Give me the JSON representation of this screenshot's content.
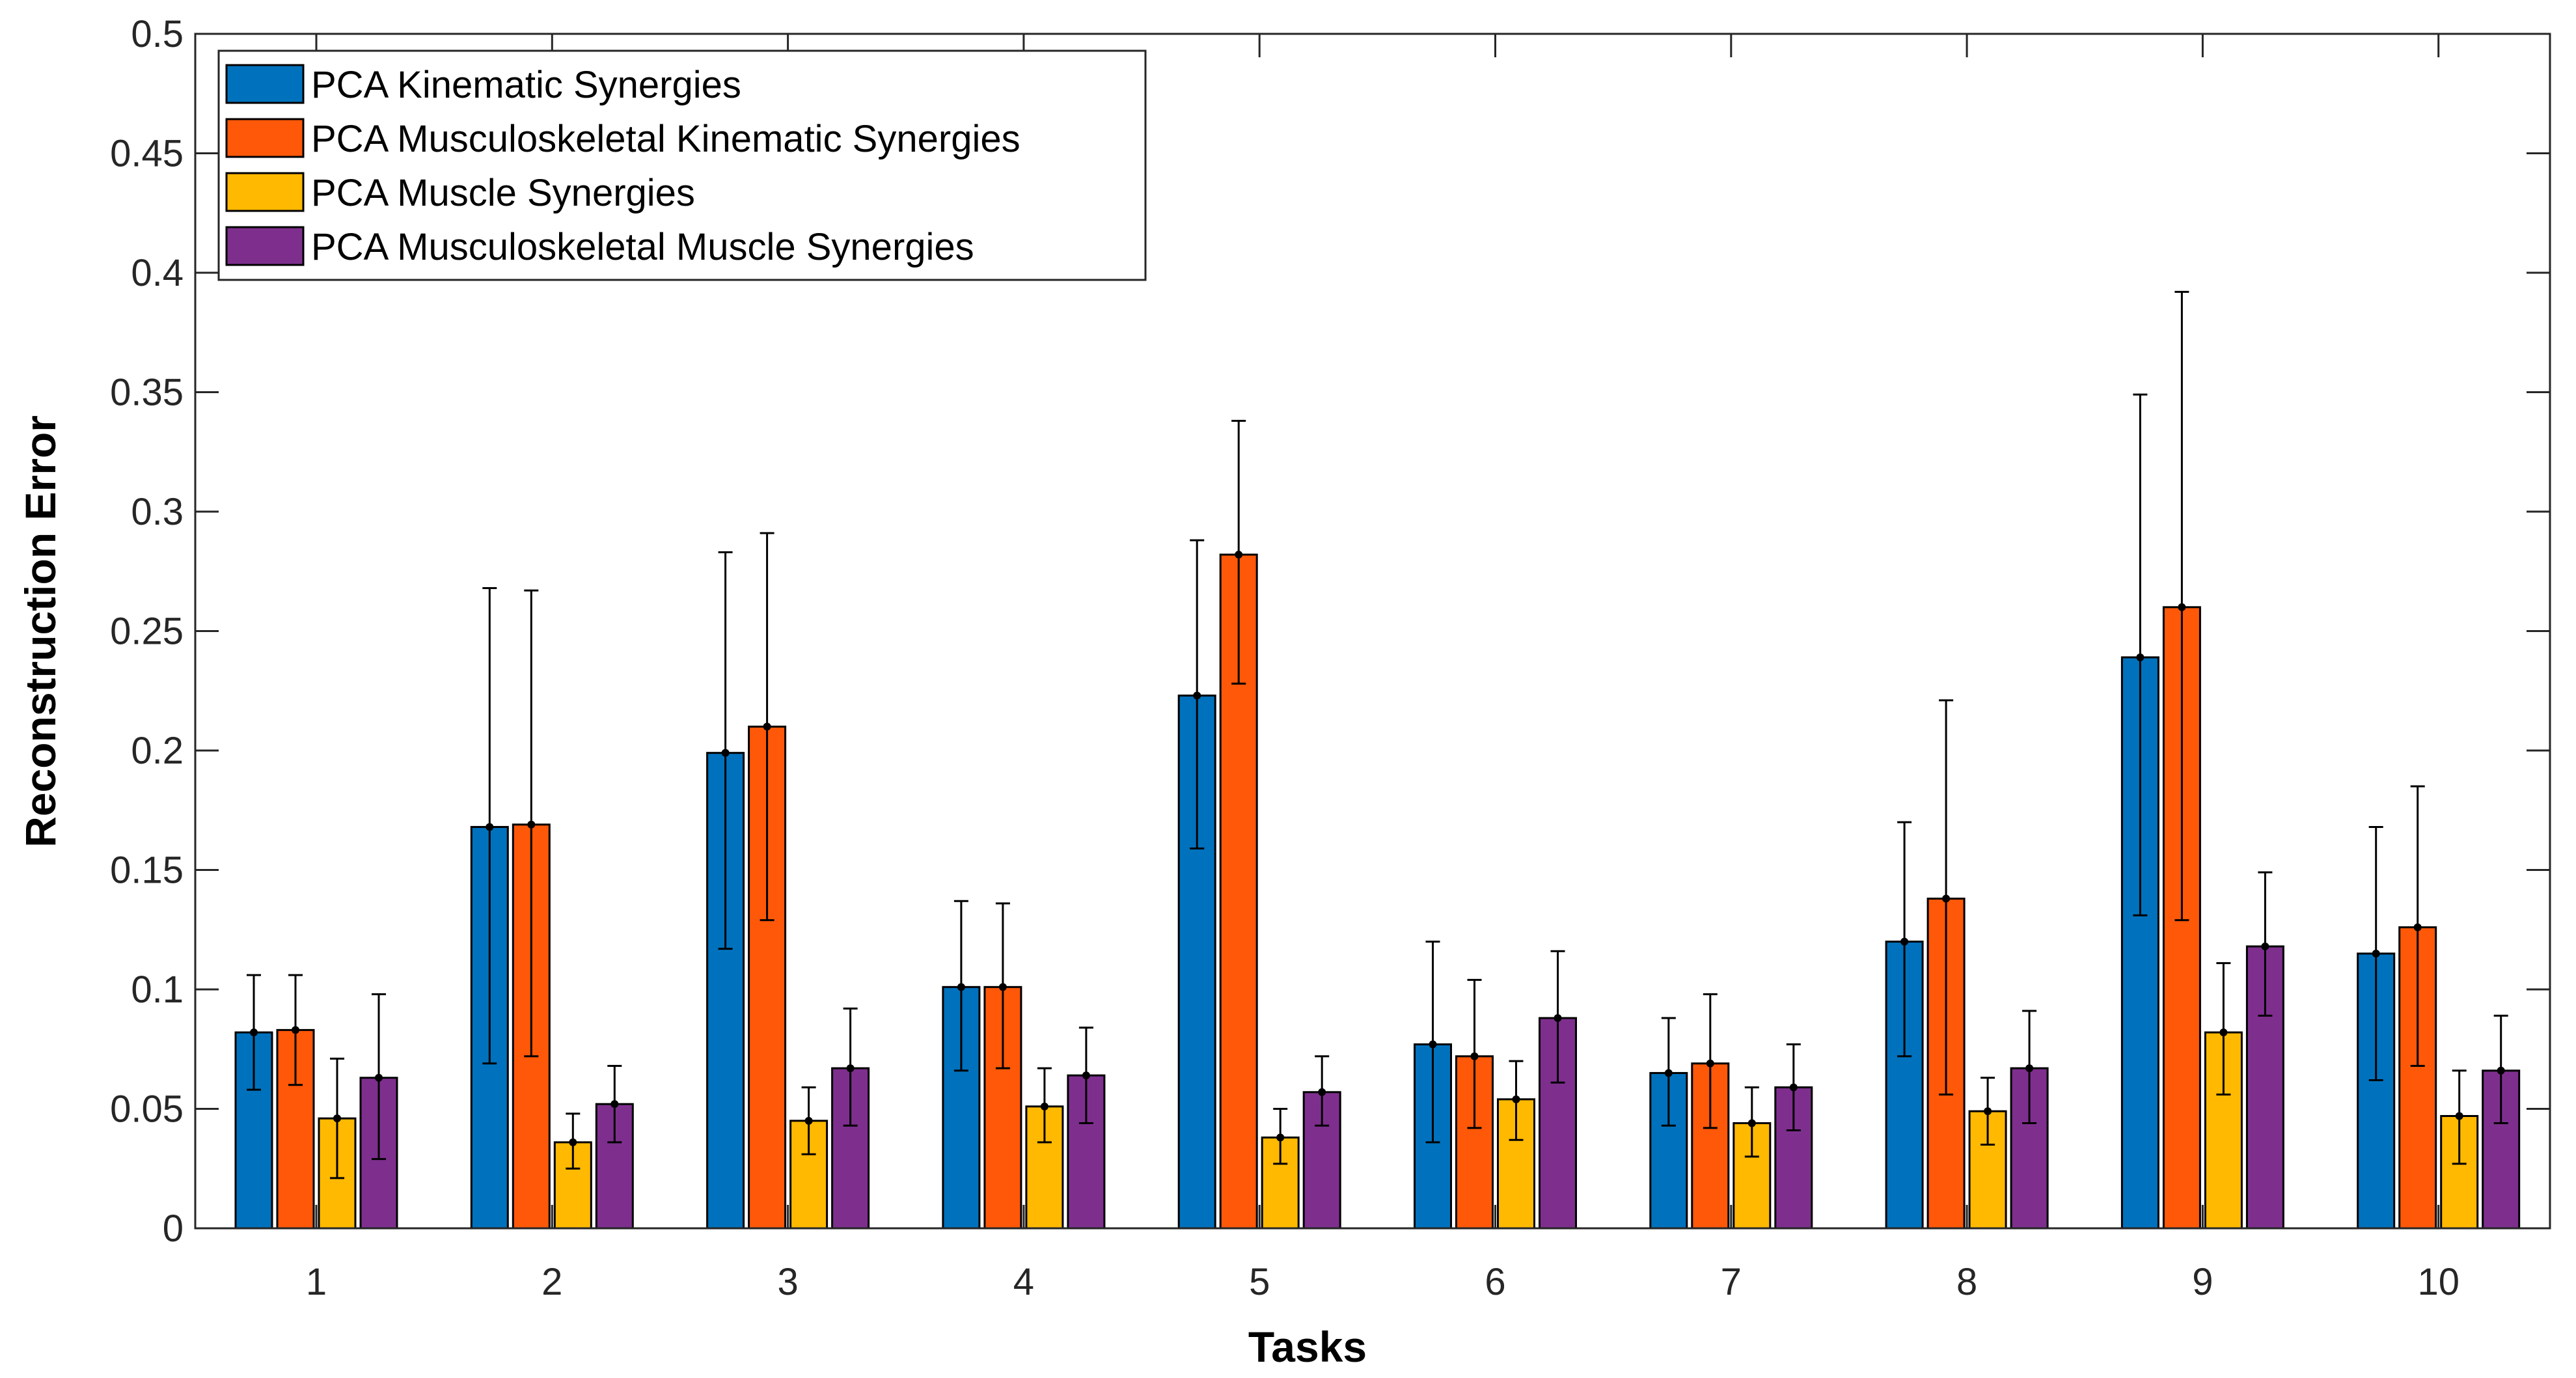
{
  "chart_data": {
    "type": "bar",
    "title": "",
    "xlabel": "Tasks",
    "ylabel": "Reconstruction Error",
    "ylim": [
      0,
      0.5
    ],
    "yticks": [
      0,
      0.05,
      0.1,
      0.15,
      0.2,
      0.25,
      0.3,
      0.35,
      0.4,
      0.45,
      0.5
    ],
    "ytick_labels": [
      "0",
      "0.05",
      "0.1",
      "0.15",
      "0.2",
      "0.25",
      "0.3",
      "0.35",
      "0.4",
      "0.45",
      "0.5"
    ],
    "categories": [
      "1",
      "2",
      "3",
      "4",
      "5",
      "6",
      "7",
      "8",
      "9",
      "10"
    ],
    "grid": false,
    "legend_position": "top-left",
    "series": [
      {
        "name": "PCA Kinematic Synergies",
        "color": "#0072BD",
        "values": [
          0.082,
          0.168,
          0.199,
          0.101,
          0.223,
          0.077,
          0.065,
          0.12,
          0.239,
          0.115
        ],
        "err_low": [
          0.058,
          0.069,
          0.117,
          0.066,
          0.159,
          0.036,
          0.043,
          0.072,
          0.131,
          0.062
        ],
        "err_high": [
          0.106,
          0.268,
          0.283,
          0.137,
          0.288,
          0.12,
          0.088,
          0.17,
          0.349,
          0.168
        ]
      },
      {
        "name": "PCA Musculoskeletal Kinematic Synergies",
        "color": "#FF5808",
        "values": [
          0.083,
          0.169,
          0.21,
          0.101,
          0.282,
          0.072,
          0.069,
          0.138,
          0.26,
          0.126
        ],
        "err_low": [
          0.06,
          0.072,
          0.129,
          0.067,
          0.228,
          0.042,
          0.042,
          0.056,
          0.129,
          0.068
        ],
        "err_high": [
          0.106,
          0.267,
          0.291,
          0.136,
          0.338,
          0.104,
          0.098,
          0.221,
          0.392,
          0.185
        ]
      },
      {
        "name": "PCA Muscle Synergies",
        "color": "#FFB900",
        "values": [
          0.046,
          0.036,
          0.045,
          0.051,
          0.038,
          0.054,
          0.044,
          0.049,
          0.082,
          0.047
        ],
        "err_low": [
          0.021,
          0.025,
          0.031,
          0.036,
          0.027,
          0.037,
          0.03,
          0.035,
          0.056,
          0.027
        ],
        "err_high": [
          0.071,
          0.048,
          0.059,
          0.067,
          0.05,
          0.07,
          0.059,
          0.063,
          0.111,
          0.066
        ]
      },
      {
        "name": "PCA Musculoskeletal Muscle Synergies",
        "color": "#7E2F8E",
        "values": [
          0.063,
          0.052,
          0.067,
          0.064,
          0.057,
          0.088,
          0.059,
          0.067,
          0.118,
          0.066
        ],
        "err_low": [
          0.029,
          0.036,
          0.043,
          0.044,
          0.043,
          0.061,
          0.041,
          0.044,
          0.089,
          0.044
        ],
        "err_high": [
          0.098,
          0.068,
          0.092,
          0.084,
          0.072,
          0.116,
          0.077,
          0.091,
          0.149,
          0.089
        ]
      }
    ]
  }
}
